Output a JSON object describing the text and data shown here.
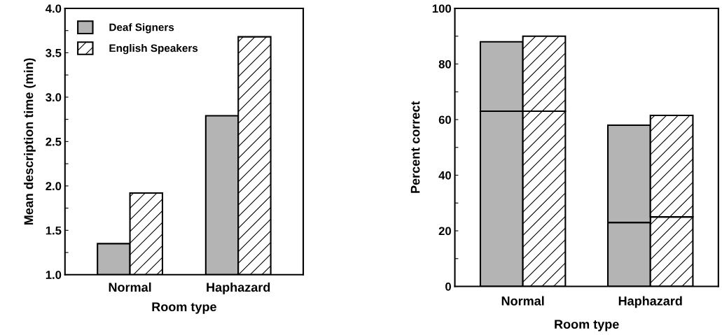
{
  "chart_data": [
    {
      "type": "bar",
      "ylabel": "Mean description time (min)",
      "xlabel": "Room type",
      "categories": [
        "Normal",
        "Haphazard"
      ],
      "series": [
        {
          "name": "Deaf Signers",
          "color": "#b4b4b4",
          "values": [
            1.35,
            2.79
          ]
        },
        {
          "name": "English Speakers",
          "color": "#ffffff",
          "values": [
            1.92,
            3.68
          ]
        }
      ],
      "ylim": [
        1.0,
        4.0
      ],
      "yticks": [
        {
          "value": 1.0,
          "label": "1.0"
        },
        {
          "value": 1.25,
          "label": null
        },
        {
          "value": 1.5,
          "label": "1.5"
        },
        {
          "value": 1.75,
          "label": null
        },
        {
          "value": 2.0,
          "label": "2.0"
        },
        {
          "value": 2.25,
          "label": null
        },
        {
          "value": 2.5,
          "label": "2.5"
        },
        {
          "value": 2.75,
          "label": null
        },
        {
          "value": 3.0,
          "label": "3.0"
        },
        {
          "value": 3.25,
          "label": null
        },
        {
          "value": 3.5,
          "label": "3.5"
        },
        {
          "value": 3.75,
          "label": null
        },
        {
          "value": 4.0,
          "label": "4.0"
        }
      ],
      "legend": "top left",
      "grid": false
    },
    {
      "type": "bar",
      "ylabel": "Percent correct",
      "xlabel": "Room type",
      "categories": [
        null,
        null,
        null,
        null,
        null
      ],
      "stacked": true,
      "series": [
        {
          "colors": [
            "#b4b4b4",
            "#ffffff",
            null,
            "#b4b4b4",
            "#ffffff"
          ],
          "values": [
            63,
            63,
            null,
            23,
            25
          ]
        },
        {
          "colors": [
            "#b4b4b4",
            "#ffffff",
            null,
            "#b4b4b4",
            "#ffffff"
          ],
          "values": [
            25,
            27,
            null,
            35,
            36.5
          ]
        }
      ],
      "annotations": [
        "Normal",
        "Haphazard"
      ],
      "ylim": [
        0,
        100
      ],
      "yticks": [
        0,
        {
          "value": 10,
          "label": null
        },
        20,
        {
          "value": 30,
          "label": null
        },
        40,
        {
          "value": 50,
          "label": null
        },
        60,
        {
          "value": 70,
          "label": null
        },
        80,
        {
          "value": 90,
          "label": null
        },
        100
      ],
      "grid": false
    }
  ]
}
